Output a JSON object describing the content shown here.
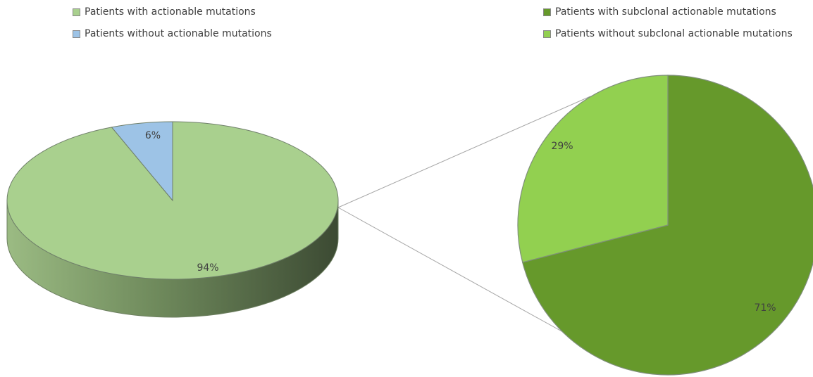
{
  "chart_data": [
    {
      "type": "pie",
      "style": "3d",
      "legend_position": "top-left",
      "slices": [
        {
          "name": "Patients with actionable mutations",
          "value": 94,
          "label": "94%",
          "color": "#a9d08e"
        },
        {
          "name": "Patients without actionable mutations",
          "value": 6,
          "label": "6%",
          "color": "#9dc3e6"
        }
      ]
    },
    {
      "type": "pie",
      "style": "2d",
      "legend_position": "top-right",
      "slices": [
        {
          "name": "Patients with subclonal actionable mutations",
          "value": 71,
          "label": "71%",
          "color": "#66992b"
        },
        {
          "name": "Patients without subclonal actionable mutations",
          "value": 29,
          "label": "29%",
          "color": "#92d050"
        }
      ]
    }
  ]
}
